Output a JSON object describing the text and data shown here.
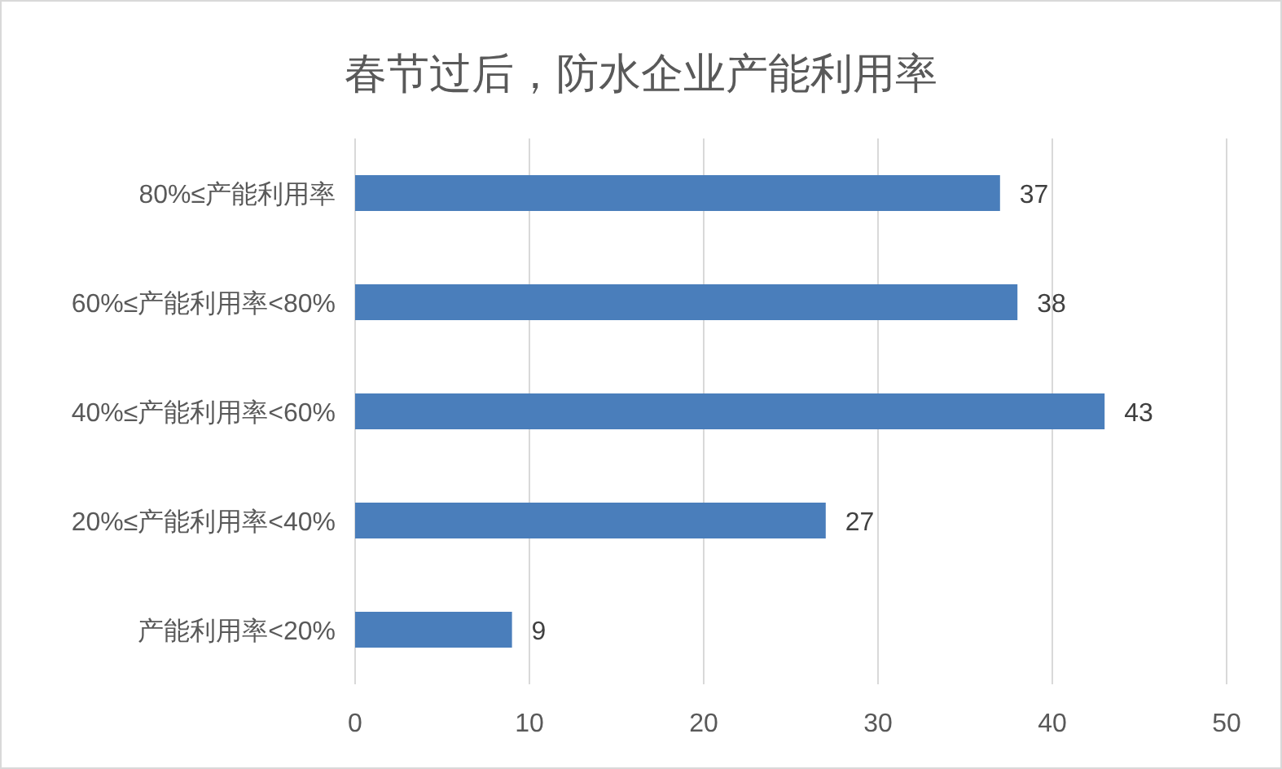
{
  "chart_data": {
    "type": "bar",
    "orientation": "horizontal",
    "title": "春节过后，防水企业产能利用率",
    "categories": [
      "80%≤产能利用率",
      "60%≤产能利用率<80%",
      "40%≤产能利用率<60%",
      "20%≤产能利用率<40%",
      "产能利用率<20%"
    ],
    "values": [
      37,
      38,
      43,
      27,
      9
    ],
    "color": "#4a7ebb",
    "xlim": [
      0,
      50
    ],
    "xticks": [
      0,
      10,
      20,
      30,
      40,
      50
    ],
    "grid": "x",
    "data_labels": true
  }
}
